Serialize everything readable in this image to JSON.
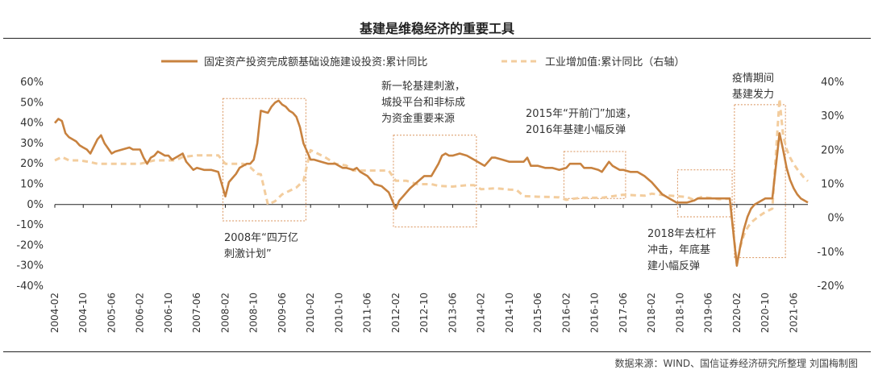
{
  "chart_data": {
    "type": "line",
    "title": "基建是维稳经济的重要工具",
    "source": "数据来源：WIND、国信证券经济研究所整理 刘国梅制图",
    "x_tick_labels": [
      "2004-02",
      "2004-10",
      "2005-06",
      "2006-02",
      "2006-10",
      "2007-06",
      "2008-02",
      "2008-10",
      "2009-06",
      "2010-02",
      "2010-10",
      "2011-06",
      "2012-02",
      "2012-10",
      "2013-06",
      "2014-02",
      "2014-10",
      "2015-06",
      "2016-02",
      "2016-10",
      "2017-06",
      "2018-02",
      "2018-10",
      "2019-06",
      "2020-02",
      "2020-10",
      "2021-06"
    ],
    "y_left": {
      "min": -40,
      "max": 60,
      "ticks": [
        -40,
        -30,
        -20,
        -10,
        0,
        10,
        20,
        30,
        40,
        50,
        60
      ],
      "tick_labels": [
        "-40%",
        "-30%",
        "-20%",
        "-10%",
        "0%",
        "10%",
        "20%",
        "30%",
        "40%",
        "50%",
        "60%"
      ]
    },
    "y_right": {
      "min": -20,
      "max": 40,
      "ticks": [
        -20,
        -10,
        0,
        10,
        20,
        30,
        40
      ],
      "tick_labels": [
        "-20%",
        "-10%",
        "0%",
        "10%",
        "20%",
        "30%",
        "40%"
      ]
    },
    "legend_position": "top",
    "series": [
      {
        "name": "固定资产投资完成额基础设施建设投资:累计同比",
        "axis": "left",
        "color": "#C8823F",
        "style": "solid",
        "points": [
          [
            "2004-02",
            40
          ],
          [
            "2004-03",
            42
          ],
          [
            "2004-04",
            41
          ],
          [
            "2004-05",
            35
          ],
          [
            "2004-06",
            33
          ],
          [
            "2004-08",
            31
          ],
          [
            "2004-09",
            29
          ],
          [
            "2004-10",
            28
          ],
          [
            "2004-11",
            27
          ],
          [
            "2004-12",
            25
          ],
          [
            "2005-02",
            32
          ],
          [
            "2005-03",
            34
          ],
          [
            "2005-04",
            30
          ],
          [
            "2005-06",
            25
          ],
          [
            "2005-07",
            26
          ],
          [
            "2005-09",
            27
          ],
          [
            "2005-11",
            28
          ],
          [
            "2005-12",
            27
          ],
          [
            "2006-02",
            27
          ],
          [
            "2006-03",
            23
          ],
          [
            "2006-04",
            20
          ],
          [
            "2006-05",
            23
          ],
          [
            "2006-06",
            24
          ],
          [
            "2006-07",
            26
          ],
          [
            "2006-08",
            25
          ],
          [
            "2006-09",
            24
          ],
          [
            "2006-10",
            24
          ],
          [
            "2006-11",
            22
          ],
          [
            "2006-12",
            23
          ],
          [
            "2007-02",
            25
          ],
          [
            "2007-03",
            21
          ],
          [
            "2007-04",
            19
          ],
          [
            "2007-05",
            17
          ],
          [
            "2007-06",
            18
          ],
          [
            "2007-08",
            17
          ],
          [
            "2007-10",
            17
          ],
          [
            "2007-12",
            16
          ],
          [
            "2008-02",
            4
          ],
          [
            "2008-03",
            11
          ],
          [
            "2008-04",
            13
          ],
          [
            "2008-05",
            15
          ],
          [
            "2008-06",
            18
          ],
          [
            "2008-07",
            19
          ],
          [
            "2008-08",
            20
          ],
          [
            "2008-09",
            20
          ],
          [
            "2008-10",
            22
          ],
          [
            "2008-11",
            30
          ],
          [
            "2008-12",
            46
          ],
          [
            "2009-02",
            45
          ],
          [
            "2009-03",
            48
          ],
          [
            "2009-04",
            50
          ],
          [
            "2009-05",
            51
          ],
          [
            "2009-06",
            49
          ],
          [
            "2009-07",
            48
          ],
          [
            "2009-08",
            46
          ],
          [
            "2009-09",
            45
          ],
          [
            "2009-10",
            43
          ],
          [
            "2009-11",
            38
          ],
          [
            "2009-12",
            30
          ],
          [
            "2010-02",
            22
          ],
          [
            "2010-03",
            22
          ],
          [
            "2010-05",
            21
          ],
          [
            "2010-07",
            20
          ],
          [
            "2010-09",
            20
          ],
          [
            "2010-11",
            18
          ],
          [
            "2010-12",
            18
          ],
          [
            "2011-02",
            17
          ],
          [
            "2011-03",
            18
          ],
          [
            "2011-04",
            16
          ],
          [
            "2011-06",
            14
          ],
          [
            "2011-08",
            10
          ],
          [
            "2011-10",
            9
          ],
          [
            "2011-12",
            6
          ],
          [
            "2012-02",
            -2
          ],
          [
            "2012-03",
            2
          ],
          [
            "2012-04",
            4
          ],
          [
            "2012-06",
            8
          ],
          [
            "2012-08",
            11
          ],
          [
            "2012-10",
            14
          ],
          [
            "2012-12",
            14
          ],
          [
            "2013-02",
            20
          ],
          [
            "2013-03",
            24
          ],
          [
            "2013-04",
            25
          ],
          [
            "2013-05",
            24
          ],
          [
            "2013-06",
            24
          ],
          [
            "2013-08",
            25
          ],
          [
            "2013-10",
            24
          ],
          [
            "2013-12",
            22
          ],
          [
            "2014-02",
            20
          ],
          [
            "2014-03",
            19
          ],
          [
            "2014-04",
            21
          ],
          [
            "2014-05",
            23
          ],
          [
            "2014-06",
            23
          ],
          [
            "2014-08",
            22
          ],
          [
            "2014-10",
            21
          ],
          [
            "2014-12",
            21
          ],
          [
            "2015-02",
            21
          ],
          [
            "2015-03",
            23
          ],
          [
            "2015-04",
            19
          ],
          [
            "2015-06",
            19
          ],
          [
            "2015-08",
            18
          ],
          [
            "2015-10",
            18
          ],
          [
            "2015-12",
            17
          ],
          [
            "2016-02",
            18
          ],
          [
            "2016-03",
            20
          ],
          [
            "2016-05",
            20
          ],
          [
            "2016-06",
            20
          ],
          [
            "2016-07",
            18
          ],
          [
            "2016-09",
            18
          ],
          [
            "2016-11",
            17
          ],
          [
            "2016-12",
            16
          ],
          [
            "2017-02",
            21
          ],
          [
            "2017-03",
            19
          ],
          [
            "2017-04",
            18
          ],
          [
            "2017-05",
            17
          ],
          [
            "2017-06",
            17
          ],
          [
            "2017-08",
            16
          ],
          [
            "2017-10",
            16
          ],
          [
            "2017-12",
            14
          ],
          [
            "2018-02",
            11
          ],
          [
            "2018-03",
            9
          ],
          [
            "2018-05",
            5
          ],
          [
            "2018-07",
            3
          ],
          [
            "2018-09",
            1
          ],
          [
            "2018-10",
            1
          ],
          [
            "2018-12",
            1
          ],
          [
            "2019-02",
            2
          ],
          [
            "2019-03",
            3
          ],
          [
            "2019-05",
            3
          ],
          [
            "2019-07",
            3
          ],
          [
            "2019-09",
            3
          ],
          [
            "2019-11",
            3
          ],
          [
            "2019-12",
            3
          ],
          [
            "2020-02",
            -30
          ],
          [
            "2020-03",
            -20
          ],
          [
            "2020-04",
            -12
          ],
          [
            "2020-05",
            -6
          ],
          [
            "2020-06",
            -2
          ],
          [
            "2020-07",
            0
          ],
          [
            "2020-08",
            1
          ],
          [
            "2020-09",
            2
          ],
          [
            "2020-10",
            3
          ],
          [
            "2020-11",
            3
          ],
          [
            "2020-12",
            3
          ],
          [
            "2021-02",
            35
          ],
          [
            "2021-03",
            27
          ],
          [
            "2021-04",
            18
          ],
          [
            "2021-05",
            12
          ],
          [
            "2021-06",
            8
          ],
          [
            "2021-07",
            5
          ],
          [
            "2021-08",
            3
          ],
          [
            "2021-09",
            2
          ],
          [
            "2021-10",
            1
          ]
        ]
      },
      {
        "name": "工业增加值:累计同比（右轴）",
        "axis": "right",
        "color": "#F3CD9E",
        "style": "dashed",
        "points": [
          [
            "2004-02",
            17
          ],
          [
            "2004-04",
            18
          ],
          [
            "2004-06",
            17
          ],
          [
            "2004-09",
            17
          ],
          [
            "2004-12",
            16.5
          ],
          [
            "2005-02",
            16
          ],
          [
            "2005-06",
            16
          ],
          [
            "2005-10",
            16
          ],
          [
            "2005-12",
            16
          ],
          [
            "2006-02",
            16
          ],
          [
            "2006-06",
            17
          ],
          [
            "2006-10",
            17
          ],
          [
            "2006-12",
            17
          ],
          [
            "2007-02",
            18
          ],
          [
            "2007-06",
            18.5
          ],
          [
            "2007-10",
            18.5
          ],
          [
            "2007-12",
            18.5
          ],
          [
            "2008-02",
            16
          ],
          [
            "2008-05",
            16
          ],
          [
            "2008-07",
            16
          ],
          [
            "2008-09",
            15
          ],
          [
            "2008-11",
            13
          ],
          [
            "2008-12",
            12.9
          ],
          [
            "2009-02",
            4
          ],
          [
            "2009-04",
            5
          ],
          [
            "2009-06",
            7
          ],
          [
            "2009-08",
            8
          ],
          [
            "2009-10",
            9
          ],
          [
            "2009-12",
            11
          ],
          [
            "2010-02",
            20
          ],
          [
            "2010-04",
            19
          ],
          [
            "2010-06",
            18
          ],
          [
            "2010-09",
            16
          ],
          [
            "2010-12",
            15.5
          ],
          [
            "2011-02",
            14
          ],
          [
            "2011-05",
            14
          ],
          [
            "2011-08",
            14
          ],
          [
            "2011-12",
            14
          ],
          [
            "2012-02",
            11
          ],
          [
            "2012-05",
            11
          ],
          [
            "2012-08",
            10
          ],
          [
            "2012-12",
            10
          ],
          [
            "2013-02",
            9.5
          ],
          [
            "2013-06",
            9.3
          ],
          [
            "2013-10",
            9.7
          ],
          [
            "2013-12",
            9.7
          ],
          [
            "2014-02",
            8.5
          ],
          [
            "2014-06",
            8.8
          ],
          [
            "2014-10",
            8.4
          ],
          [
            "2014-12",
            8.3
          ],
          [
            "2015-02",
            6.5
          ],
          [
            "2015-06",
            6.3
          ],
          [
            "2015-10",
            6.2
          ],
          [
            "2015-12",
            6.1
          ],
          [
            "2016-02",
            5.4
          ],
          [
            "2016-06",
            6
          ],
          [
            "2016-10",
            6
          ],
          [
            "2016-12",
            6
          ],
          [
            "2017-02",
            6.3
          ],
          [
            "2017-06",
            6.9
          ],
          [
            "2017-10",
            6.7
          ],
          [
            "2017-12",
            6.6
          ],
          [
            "2018-02",
            7.2
          ],
          [
            "2018-06",
            6.7
          ],
          [
            "2018-10",
            6.4
          ],
          [
            "2018-12",
            6.2
          ],
          [
            "2019-02",
            5.3
          ],
          [
            "2019-04",
            6.2
          ],
          [
            "2019-06",
            6
          ],
          [
            "2019-09",
            5.6
          ],
          [
            "2019-12",
            5.7
          ],
          [
            "2020-02",
            -13.5
          ],
          [
            "2020-03",
            -8.4
          ],
          [
            "2020-04",
            -4.9
          ],
          [
            "2020-05",
            -2.8
          ],
          [
            "2020-06",
            -1.3
          ],
          [
            "2020-08",
            0.4
          ],
          [
            "2020-10",
            1.8
          ],
          [
            "2020-12",
            2.8
          ],
          [
            "2021-02",
            35.1
          ],
          [
            "2021-03",
            24.5
          ],
          [
            "2021-04",
            20.3
          ],
          [
            "2021-05",
            17.8
          ],
          [
            "2021-06",
            15.9
          ],
          [
            "2021-07",
            14.4
          ],
          [
            "2021-08",
            13.1
          ],
          [
            "2021-09",
            11.8
          ],
          [
            "2021-10",
            10.9
          ]
        ]
      }
    ],
    "annotations": [
      {
        "id": "2008",
        "lines": [
          "2008年“四万亿",
          "刺激计划”"
        ],
        "box": {
          "x_from": "2008-02",
          "x_to": "2009-12",
          "y_top": 52,
          "y_bottom": -8
        }
      },
      {
        "id": "2012",
        "lines": [
          "新一轮基建刺激，",
          "城投平台和非标成",
          "为资金重要来源"
        ],
        "box": {
          "x_from": "2012-02",
          "x_to": "2013-12",
          "y_top": 34,
          "y_bottom": -11
        }
      },
      {
        "id": "2015",
        "lines": [
          "2015年“开前门”加速，",
          "2016年基建小幅反弹"
        ],
        "box": {
          "x_from": "2016-02",
          "x_to": "2017-06",
          "y_top": 26,
          "y_bottom": 3
        }
      },
      {
        "id": "2018",
        "lines": [
          "2018年去杠杆",
          "冲击，年底基",
          "建小幅反弹"
        ],
        "box": {
          "x_from": "2018-10",
          "x_to": "2019-12",
          "y_top": 17,
          "y_bottom": -6
        }
      },
      {
        "id": "2020",
        "lines": [
          "疫情期间",
          "基建发力"
        ],
        "box": {
          "x_from": "2020-02",
          "x_to": "2021-03",
          "y_top": 49,
          "y_bottom": -26
        }
      }
    ]
  }
}
